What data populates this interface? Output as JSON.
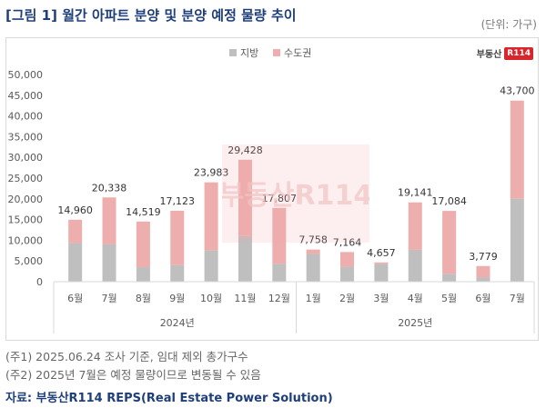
{
  "header": {
    "title": "[그림 1] 월간 아파트 분양 및 분양 예정 물량 추이",
    "unit": "(단위: 가구)"
  },
  "logo": {
    "text": "부동산",
    "badge": "R114"
  },
  "watermark": {
    "text": "부동산R114"
  },
  "legend": {
    "local": "지방",
    "capital": "수도권"
  },
  "colors": {
    "local": "#bfbfbf",
    "capital": "#eeaeae",
    "title": "#1f3f7a",
    "axis_text": "#595959",
    "grid": "#d9d9d9"
  },
  "chart_data": {
    "type": "bar",
    "stacked": true,
    "categories": [
      "6월",
      "7월",
      "8월",
      "9월",
      "10월",
      "11월",
      "12월",
      "1월",
      "2월",
      "3월",
      "4월",
      "5월",
      "6월",
      "7월"
    ],
    "year_groups": [
      {
        "label": "2024년",
        "count": 7
      },
      {
        "label": "2025년",
        "count": 7
      }
    ],
    "series": [
      {
        "name": "지방",
        "color": "#bfbfbf",
        "values": [
          9300,
          9000,
          3500,
          4000,
          7600,
          11000,
          4300,
          6700,
          3600,
          4300,
          7700,
          1900,
          1000,
          20000
        ]
      },
      {
        "name": "수도권",
        "color": "#eeaeae",
        "values": [
          5660,
          11338,
          11019,
          13123,
          16383,
          18428,
          13507,
          1058,
          3564,
          357,
          11441,
          15184,
          2779,
          23700
        ]
      }
    ],
    "totals": [
      14960,
      20338,
      14519,
      17123,
      23983,
      29428,
      17807,
      7758,
      7164,
      4657,
      19141,
      17084,
      3779,
      43700
    ],
    "total_labels": [
      "14,960",
      "20,338",
      "14,519",
      "17,123",
      "23,983",
      "29,428",
      "17,807",
      "7,758",
      "7,164",
      "4,657",
      "19,141",
      "17,084",
      "3,779",
      "43,700"
    ],
    "yticks": [
      0,
      5000,
      10000,
      15000,
      20000,
      25000,
      30000,
      35000,
      40000,
      45000,
      50000
    ],
    "ytick_labels": [
      "0",
      "5,000",
      "10,000",
      "15,000",
      "20,000",
      "25,000",
      "30,000",
      "35,000",
      "40,000",
      "45,000",
      "50,000"
    ],
    "ylim": [
      0,
      50000
    ],
    "grid": false,
    "legend_position": "top-center"
  },
  "notes": [
    "(주1) 2025.06.24 조사 기준, 임대 제외 총가구수",
    "(주2) 2025년 7월은 예정 물량이므로 변동될 수 있음"
  ],
  "source": "자료: 부동산R114 REPS(Real Estate Power Solution)"
}
